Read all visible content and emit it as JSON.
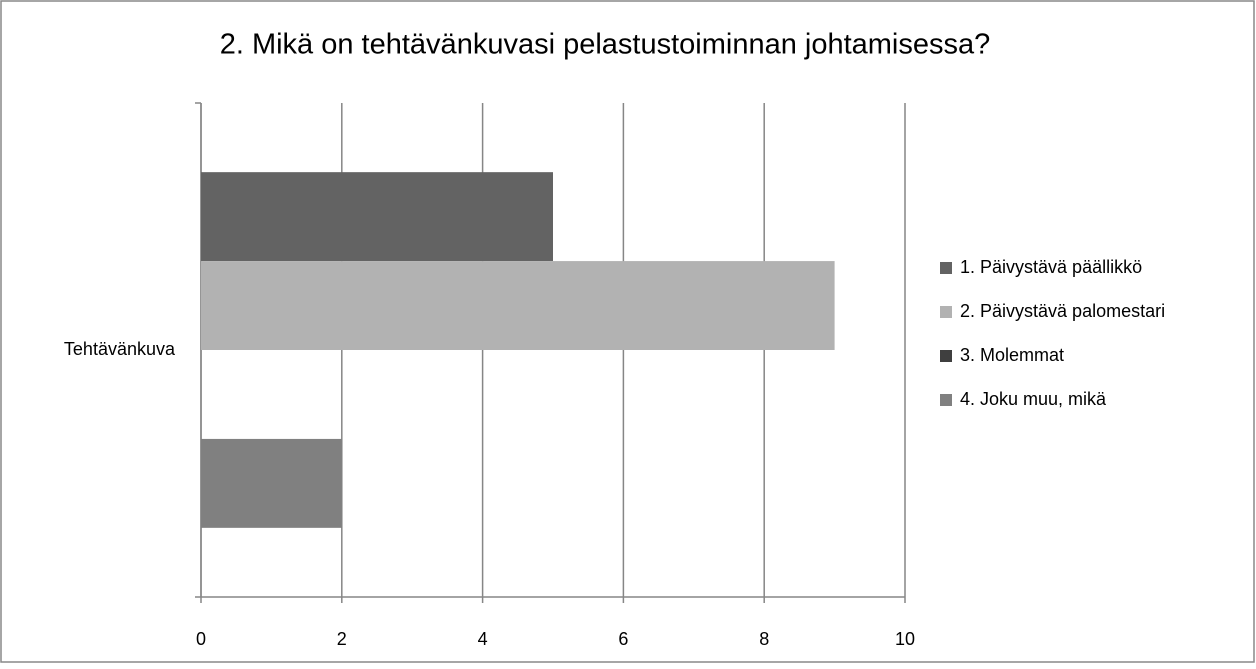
{
  "chart_data": {
    "type": "bar",
    "orientation": "horizontal",
    "title": "2. Mikä on tehtävänkuvasi pelastustoiminnan johtamisessa?",
    "categories": [
      "Tehtävänkuva"
    ],
    "series": [
      {
        "name": "1. Päivystävä päällikkö",
        "color": "#636363",
        "values": [
          5
        ]
      },
      {
        "name": "2. Päivystävä palomestari",
        "color": "#b2b2b2",
        "values": [
          9
        ]
      },
      {
        "name": "3. Molemmat",
        "color": "#3f3f3f",
        "values": [
          0
        ]
      },
      {
        "name": "4. Joku muu, mikä",
        "color": "#808080",
        "values": [
          2
        ]
      }
    ],
    "xlim": [
      0,
      10
    ],
    "xticks": [
      0,
      2,
      4,
      6,
      8,
      10
    ],
    "grid": true,
    "legend": "right"
  }
}
